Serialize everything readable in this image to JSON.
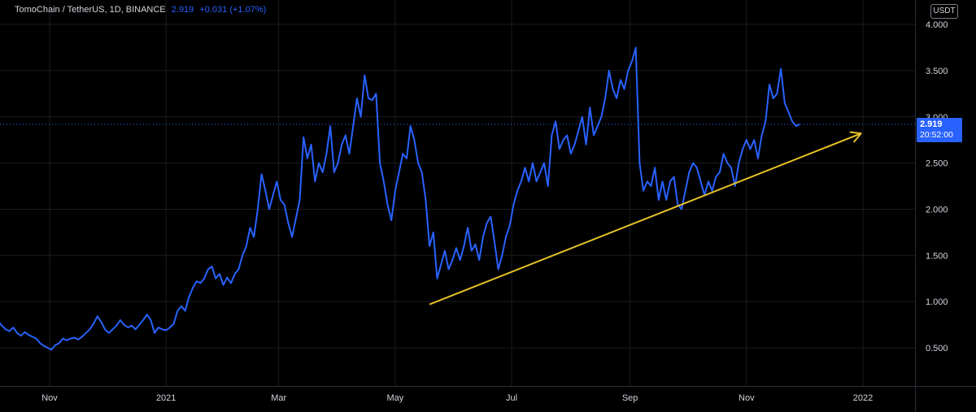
{
  "header": {
    "symbol": "TomoChain / TetherUS, 1D, BINANCE",
    "last_price": "2.919",
    "change": "+0.031 (+1.07%)"
  },
  "currency_button": "USDT",
  "price_tag": {
    "price": "2.919",
    "countdown": "20:52:00"
  },
  "colors": {
    "line": "#2962ff",
    "trendline": "#e6c229",
    "grid": "#1c1c1c",
    "text": "#d1d4dc",
    "background": "#000000"
  },
  "chart_data": {
    "type": "line",
    "title": "",
    "xlabel": "",
    "ylabel": "",
    "ylim": [
      0.15,
      4.2
    ],
    "y_ticks": [
      "4.000",
      "3.500",
      "3.000",
      "2.500",
      "2.000",
      "1.500",
      "1.000",
      "0.500"
    ],
    "x_ticks": [
      "Nov",
      "2021",
      "Mar",
      "May",
      "Jul",
      "Sep",
      "Nov",
      "2022"
    ],
    "grid": true,
    "series": [
      {
        "values": [
          [
            "2020-10-03",
            0.73
          ],
          [
            "2020-10-05",
            0.79
          ],
          [
            "2020-10-07",
            0.74
          ],
          [
            "2020-10-09",
            0.7
          ],
          [
            "2020-10-11",
            0.68
          ],
          [
            "2020-10-13",
            0.72
          ],
          [
            "2020-10-15",
            0.66
          ],
          [
            "2020-10-17",
            0.63
          ],
          [
            "2020-10-19",
            0.67
          ],
          [
            "2020-10-21",
            0.64
          ],
          [
            "2020-10-23",
            0.62
          ],
          [
            "2020-10-25",
            0.6
          ],
          [
            "2020-10-27",
            0.55
          ],
          [
            "2020-10-29",
            0.52
          ],
          [
            "2020-10-31",
            0.5
          ],
          [
            "2020-11-02",
            0.48
          ],
          [
            "2020-11-04",
            0.53
          ],
          [
            "2020-11-06",
            0.55
          ],
          [
            "2020-11-08",
            0.6
          ],
          [
            "2020-11-10",
            0.58
          ],
          [
            "2020-11-12",
            0.6
          ],
          [
            "2020-11-14",
            0.61
          ],
          [
            "2020-11-16",
            0.59
          ],
          [
            "2020-11-18",
            0.62
          ],
          [
            "2020-11-20",
            0.66
          ],
          [
            "2020-11-22",
            0.7
          ],
          [
            "2020-11-24",
            0.76
          ],
          [
            "2020-11-26",
            0.84
          ],
          [
            "2020-11-28",
            0.78
          ],
          [
            "2020-11-30",
            0.7
          ],
          [
            "2020-12-02",
            0.66
          ],
          [
            "2020-12-04",
            0.7
          ],
          [
            "2020-12-06",
            0.74
          ],
          [
            "2020-12-08",
            0.8
          ],
          [
            "2020-12-10",
            0.75
          ],
          [
            "2020-12-12",
            0.72
          ],
          [
            "2020-12-14",
            0.74
          ],
          [
            "2020-12-16",
            0.7
          ],
          [
            "2020-12-18",
            0.75
          ],
          [
            "2020-12-20",
            0.8
          ],
          [
            "2020-12-22",
            0.86
          ],
          [
            "2020-12-24",
            0.8
          ],
          [
            "2020-12-26",
            0.66
          ],
          [
            "2020-12-28",
            0.72
          ],
          [
            "2020-12-30",
            0.7
          ],
          [
            "2021-01-01",
            0.69
          ],
          [
            "2021-01-03",
            0.72
          ],
          [
            "2021-01-05",
            0.76
          ],
          [
            "2021-01-07",
            0.9
          ],
          [
            "2021-01-09",
            0.95
          ],
          [
            "2021-01-11",
            0.9
          ],
          [
            "2021-01-13",
            1.05
          ],
          [
            "2021-01-15",
            1.15
          ],
          [
            "2021-01-17",
            1.22
          ],
          [
            "2021-01-19",
            1.2
          ],
          [
            "2021-01-21",
            1.25
          ],
          [
            "2021-01-23",
            1.35
          ],
          [
            "2021-01-25",
            1.38
          ],
          [
            "2021-01-27",
            1.25
          ],
          [
            "2021-01-29",
            1.3
          ],
          [
            "2021-01-31",
            1.18
          ],
          [
            "2021-02-02",
            1.26
          ],
          [
            "2021-02-04",
            1.2
          ],
          [
            "2021-02-06",
            1.3
          ],
          [
            "2021-02-08",
            1.35
          ],
          [
            "2021-02-10",
            1.5
          ],
          [
            "2021-02-12",
            1.6
          ],
          [
            "2021-02-14",
            1.8
          ],
          [
            "2021-02-16",
            1.7
          ],
          [
            "2021-02-18",
            2.0
          ],
          [
            "2021-02-20",
            2.38
          ],
          [
            "2021-02-22",
            2.2
          ],
          [
            "2021-02-24",
            2.0
          ],
          [
            "2021-02-26",
            2.15
          ],
          [
            "2021-02-28",
            2.3
          ],
          [
            "2021-03-02",
            2.1
          ],
          [
            "2021-03-04",
            2.05
          ],
          [
            "2021-03-06",
            1.85
          ],
          [
            "2021-03-08",
            1.7
          ],
          [
            "2021-03-10",
            1.9
          ],
          [
            "2021-03-12",
            2.1
          ],
          [
            "2021-03-14",
            2.78
          ],
          [
            "2021-03-16",
            2.55
          ],
          [
            "2021-03-18",
            2.7
          ],
          [
            "2021-03-20",
            2.3
          ],
          [
            "2021-03-22",
            2.5
          ],
          [
            "2021-03-24",
            2.4
          ],
          [
            "2021-03-26",
            2.6
          ],
          [
            "2021-03-28",
            2.9
          ],
          [
            "2021-03-30",
            2.4
          ],
          [
            "2021-04-01",
            2.5
          ],
          [
            "2021-04-03",
            2.7
          ],
          [
            "2021-04-05",
            2.8
          ],
          [
            "2021-04-07",
            2.6
          ],
          [
            "2021-04-09",
            2.9
          ],
          [
            "2021-04-11",
            3.2
          ],
          [
            "2021-04-13",
            3.0
          ],
          [
            "2021-04-15",
            3.45
          ],
          [
            "2021-04-17",
            3.2
          ],
          [
            "2021-04-19",
            3.18
          ],
          [
            "2021-04-21",
            3.25
          ],
          [
            "2021-04-23",
            2.5
          ],
          [
            "2021-04-25",
            2.3
          ],
          [
            "2021-04-27",
            2.05
          ],
          [
            "2021-04-29",
            1.88
          ],
          [
            "2021-05-01",
            2.2
          ],
          [
            "2021-05-03",
            2.4
          ],
          [
            "2021-05-05",
            2.6
          ],
          [
            "2021-05-07",
            2.55
          ],
          [
            "2021-05-09",
            2.9
          ],
          [
            "2021-05-11",
            2.75
          ],
          [
            "2021-05-13",
            2.5
          ],
          [
            "2021-05-15",
            2.4
          ],
          [
            "2021-05-17",
            2.1
          ],
          [
            "2021-05-19",
            1.6
          ],
          [
            "2021-05-21",
            1.75
          ],
          [
            "2021-05-23",
            1.25
          ],
          [
            "2021-05-25",
            1.4
          ],
          [
            "2021-05-27",
            1.55
          ],
          [
            "2021-05-29",
            1.35
          ],
          [
            "2021-05-31",
            1.45
          ],
          [
            "2021-06-02",
            1.58
          ],
          [
            "2021-06-04",
            1.45
          ],
          [
            "2021-06-06",
            1.6
          ],
          [
            "2021-06-08",
            1.8
          ],
          [
            "2021-06-10",
            1.55
          ],
          [
            "2021-06-12",
            1.62
          ],
          [
            "2021-06-14",
            1.45
          ],
          [
            "2021-06-16",
            1.7
          ],
          [
            "2021-06-18",
            1.85
          ],
          [
            "2021-06-20",
            1.92
          ],
          [
            "2021-06-22",
            1.65
          ],
          [
            "2021-06-24",
            1.35
          ],
          [
            "2021-06-26",
            1.5
          ],
          [
            "2021-06-28",
            1.7
          ],
          [
            "2021-06-30",
            1.82
          ],
          [
            "2021-07-02",
            2.05
          ],
          [
            "2021-07-04",
            2.2
          ],
          [
            "2021-07-06",
            2.3
          ],
          [
            "2021-07-08",
            2.45
          ],
          [
            "2021-07-10",
            2.3
          ],
          [
            "2021-07-12",
            2.5
          ],
          [
            "2021-07-14",
            2.3
          ],
          [
            "2021-07-16",
            2.4
          ],
          [
            "2021-07-18",
            2.5
          ],
          [
            "2021-07-20",
            2.25
          ],
          [
            "2021-07-22",
            2.8
          ],
          [
            "2021-07-24",
            2.95
          ],
          [
            "2021-07-26",
            2.65
          ],
          [
            "2021-07-28",
            2.75
          ],
          [
            "2021-07-30",
            2.8
          ],
          [
            "2021-08-01",
            2.6
          ],
          [
            "2021-08-03",
            2.7
          ],
          [
            "2021-08-05",
            2.85
          ],
          [
            "2021-08-07",
            3.0
          ],
          [
            "2021-08-09",
            2.7
          ],
          [
            "2021-08-11",
            3.1
          ],
          [
            "2021-08-13",
            2.8
          ],
          [
            "2021-08-15",
            2.9
          ],
          [
            "2021-08-17",
            3.0
          ],
          [
            "2021-08-19",
            3.2
          ],
          [
            "2021-08-21",
            3.5
          ],
          [
            "2021-08-23",
            3.3
          ],
          [
            "2021-08-25",
            3.2
          ],
          [
            "2021-08-27",
            3.4
          ],
          [
            "2021-08-29",
            3.3
          ],
          [
            "2021-08-31",
            3.5
          ],
          [
            "2021-09-02",
            3.6
          ],
          [
            "2021-09-04",
            3.75
          ],
          [
            "2021-09-06",
            2.5
          ],
          [
            "2021-09-08",
            2.2
          ],
          [
            "2021-09-10",
            2.3
          ],
          [
            "2021-09-12",
            2.25
          ],
          [
            "2021-09-14",
            2.45
          ],
          [
            "2021-09-16",
            2.1
          ],
          [
            "2021-09-18",
            2.3
          ],
          [
            "2021-09-20",
            2.1
          ],
          [
            "2021-09-22",
            2.3
          ],
          [
            "2021-09-24",
            2.35
          ],
          [
            "2021-09-26",
            2.05
          ],
          [
            "2021-09-28",
            2.0
          ],
          [
            "2021-09-30",
            2.2
          ],
          [
            "2021-10-02",
            2.4
          ],
          [
            "2021-10-04",
            2.5
          ],
          [
            "2021-10-06",
            2.45
          ],
          [
            "2021-10-08",
            2.3
          ],
          [
            "2021-10-10",
            2.15
          ],
          [
            "2021-10-12",
            2.3
          ],
          [
            "2021-10-14",
            2.2
          ],
          [
            "2021-10-16",
            2.35
          ],
          [
            "2021-10-18",
            2.4
          ],
          [
            "2021-10-20",
            2.6
          ],
          [
            "2021-10-22",
            2.5
          ],
          [
            "2021-10-24",
            2.45
          ],
          [
            "2021-10-26",
            2.25
          ],
          [
            "2021-10-28",
            2.5
          ],
          [
            "2021-10-30",
            2.65
          ],
          [
            "2021-11-01",
            2.75
          ],
          [
            "2021-11-03",
            2.65
          ],
          [
            "2021-11-05",
            2.75
          ],
          [
            "2021-11-07",
            2.55
          ],
          [
            "2021-11-09",
            2.8
          ],
          [
            "2021-11-11",
            2.95
          ],
          [
            "2021-11-13",
            3.35
          ],
          [
            "2021-11-15",
            3.2
          ],
          [
            "2021-11-17",
            3.25
          ],
          [
            "2021-11-19",
            3.52
          ],
          [
            "2021-11-21",
            3.15
          ],
          [
            "2021-11-23",
            3.05
          ],
          [
            "2021-11-25",
            2.95
          ],
          [
            "2021-11-27",
            2.9
          ],
          [
            "2021-11-29",
            2.919
          ]
        ]
      }
    ],
    "trendline": {
      "from": [
        "2021-05-19",
        0.97
      ],
      "to": [
        "2021-12-31",
        2.82
      ]
    },
    "last_value": 2.919
  }
}
